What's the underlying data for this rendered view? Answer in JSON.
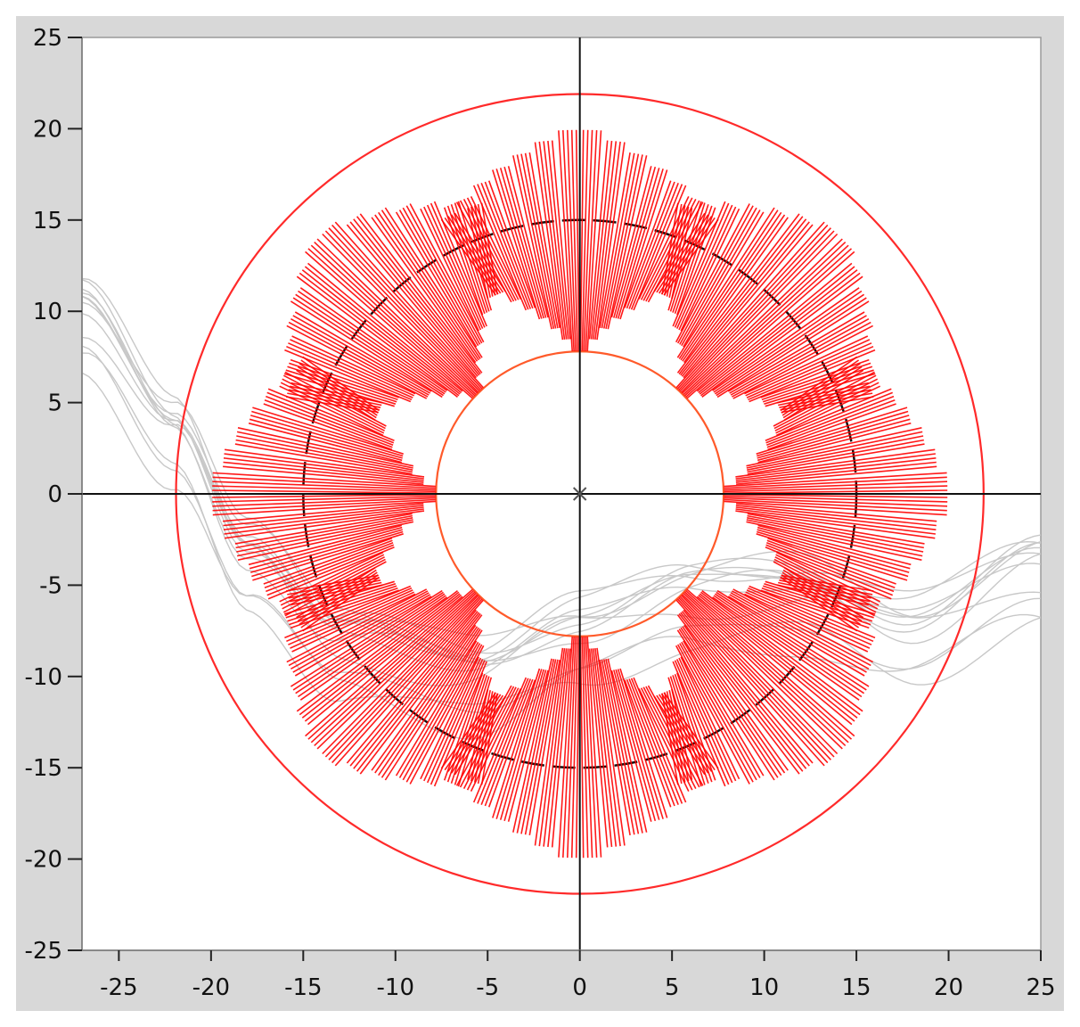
{
  "chart_data": {
    "type": "scatter",
    "title": "",
    "xlabel": "",
    "ylabel": "",
    "xlim": [
      -27,
      25
    ],
    "ylim": [
      -25,
      25
    ],
    "xticks": [
      -25,
      -20,
      -15,
      -10,
      -5,
      0,
      5,
      10,
      15,
      20,
      25
    ],
    "yticks": [
      25,
      20,
      15,
      10,
      5,
      0,
      -5,
      -10,
      -15,
      -20,
      -25
    ],
    "xtick_labels": [
      "-25",
      "-20",
      "-15",
      "-10",
      "-5",
      "0",
      "5",
      "10",
      "15",
      "20",
      "25"
    ],
    "ytick_labels": [
      "25",
      "20",
      "15",
      "10",
      "5",
      "0",
      "-5",
      "-10",
      "-15",
      "-20",
      "-25"
    ],
    "crosshair": {
      "x": 0,
      "y": 0,
      "center_marker": "x-mark"
    },
    "circles": [
      {
        "name": "outer-boundary",
        "radius": 21.9,
        "color": "#ff2a2a",
        "style": "solid"
      },
      {
        "name": "reference-circle",
        "radius": 15,
        "color": "#111111",
        "style": "dashed"
      },
      {
        "name": "inner-circle",
        "radius": 7.8,
        "color": "#ff5a2a",
        "style": "solid"
      }
    ],
    "vector_field": {
      "color": "#ff0000",
      "lobes": 8,
      "description_rows": "radial vectors arranged as an 8-lobed star around the reference circle",
      "samples_per_lobe": 14,
      "lobe_angles_deg": [
        90,
        45,
        0,
        -45,
        -90,
        -135,
        180,
        135
      ],
      "inner_radius_min": 7.5,
      "outer_radius_max": 20.5
    },
    "background_traces": {
      "color": "#c8c8c8",
      "count": 12,
      "trend_points": [
        {
          "x": -27,
          "y": 9
        },
        {
          "x": -22,
          "y": 3
        },
        {
          "x": -18,
          "y": -4
        },
        {
          "x": -13,
          "y": -9
        },
        {
          "x": -6,
          "y": -10.5
        },
        {
          "x": 0,
          "y": -8
        },
        {
          "x": 6,
          "y": -6.5
        },
        {
          "x": 12,
          "y": -6
        },
        {
          "x": 18,
          "y": -8
        },
        {
          "x": 25,
          "y": -5
        }
      ]
    },
    "grid": false,
    "colors": {
      "panel": "#d8d8d8",
      "plot_bg": "#ffffff",
      "axis": "#111111"
    }
  }
}
